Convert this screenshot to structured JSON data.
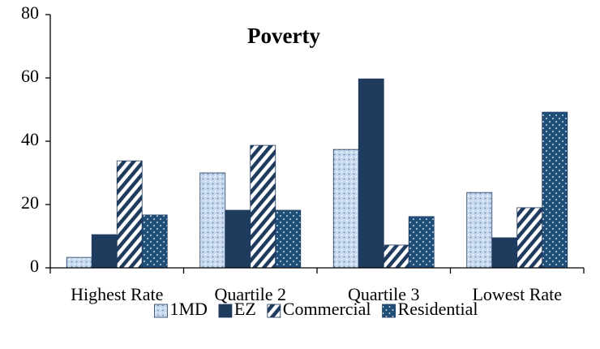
{
  "chart_data": {
    "type": "bar",
    "title": "Poverty",
    "categories": [
      "Highest Rate",
      "Quartile 2",
      "Quartile 3",
      "Lowest Rate"
    ],
    "series": [
      {
        "name": "1MD",
        "color": "#c6d9ef",
        "pattern": "dots",
        "values": [
          3.3,
          30,
          37.4,
          23.8
        ]
      },
      {
        "name": "EZ",
        "color": "#1f3b5e",
        "pattern": "solid",
        "values": [
          10.5,
          18.2,
          59.7,
          9.5
        ]
      },
      {
        "name": "Commercial",
        "color": "#1f3b5e",
        "pattern": "stripes",
        "values": [
          33.8,
          38.7,
          7.2,
          19
        ]
      },
      {
        "name": "Residential",
        "color": "#1f4e79",
        "pattern": "dots-white",
        "values": [
          16.7,
          18.2,
          16.2,
          49.2
        ]
      }
    ],
    "ylim": [
      0,
      80
    ],
    "yticks": [
      0,
      20,
      40,
      60,
      80
    ],
    "grid": false,
    "legend": "bottom"
  }
}
